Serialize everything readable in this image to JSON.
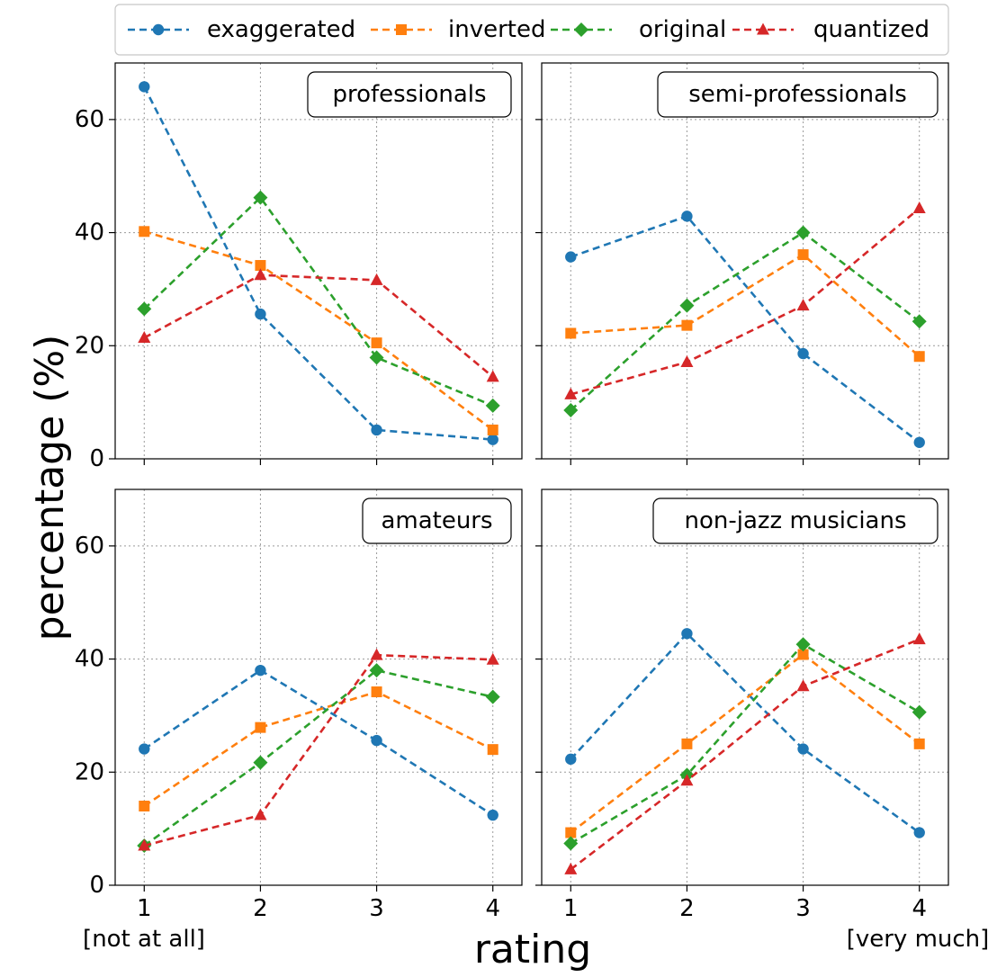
{
  "chart_data": {
    "type": "line",
    "x": [
      1,
      2,
      3,
      4
    ],
    "x_tick_labels": [
      "1",
      "2",
      "3",
      "4"
    ],
    "y_ticks": [
      0,
      20,
      40,
      60
    ],
    "ylim": [
      0,
      70
    ],
    "xlim": [
      0.75,
      4.25
    ],
    "xlabel": "rating",
    "ylabel": "percentage (%)",
    "x_notes": {
      "left": "[not at all]",
      "right": "[very much]"
    },
    "grid": true,
    "legend_position": "top",
    "series_styles": [
      {
        "name": "exaggerated",
        "color": "#1f77b4",
        "marker": "circle"
      },
      {
        "name": "inverted",
        "color": "#ff7f0e",
        "marker": "square"
      },
      {
        "name": "original",
        "color": "#2ca02c",
        "marker": "diamond"
      },
      {
        "name": "quantized",
        "color": "#d62728",
        "marker": "triangle"
      }
    ],
    "panels": [
      {
        "title": "professionals",
        "series": [
          {
            "name": "exaggerated",
            "values": [
              65.8,
              25.6,
              5.1,
              3.4
            ]
          },
          {
            "name": "inverted",
            "values": [
              40.2,
              34.2,
              20.5,
              5.1
            ]
          },
          {
            "name": "original",
            "values": [
              26.5,
              46.2,
              17.9,
              9.4
            ]
          },
          {
            "name": "quantized",
            "values": [
              21.4,
              32.5,
              31.6,
              14.5
            ]
          }
        ]
      },
      {
        "title": "semi-professionals",
        "series": [
          {
            "name": "exaggerated",
            "values": [
              35.7,
              42.9,
              18.6,
              2.9
            ]
          },
          {
            "name": "inverted",
            "values": [
              22.2,
              23.6,
              36.1,
              18.1
            ]
          },
          {
            "name": "original",
            "values": [
              8.6,
              27.1,
              40.0,
              24.3
            ]
          },
          {
            "name": "quantized",
            "values": [
              11.4,
              17.1,
              27.1,
              44.3
            ]
          }
        ]
      },
      {
        "title": "amateurs",
        "series": [
          {
            "name": "exaggerated",
            "values": [
              24.1,
              38.0,
              25.6,
              12.4
            ]
          },
          {
            "name": "inverted",
            "values": [
              14.0,
              27.9,
              34.2,
              24.0
            ]
          },
          {
            "name": "original",
            "values": [
              7.0,
              21.7,
              38.0,
              33.3
            ]
          },
          {
            "name": "quantized",
            "values": [
              7.0,
              12.4,
              40.7,
              39.9
            ]
          }
        ]
      },
      {
        "title": "non-jazz musicians",
        "series": [
          {
            "name": "exaggerated",
            "values": [
              22.3,
              44.5,
              24.1,
              9.3
            ]
          },
          {
            "name": "inverted",
            "values": [
              9.3,
              25.0,
              40.8,
              25.0
            ]
          },
          {
            "name": "original",
            "values": [
              7.4,
              19.5,
              42.6,
              30.6
            ]
          },
          {
            "name": "quantized",
            "values": [
              2.8,
              18.5,
              35.2,
              43.5
            ]
          }
        ]
      }
    ]
  }
}
